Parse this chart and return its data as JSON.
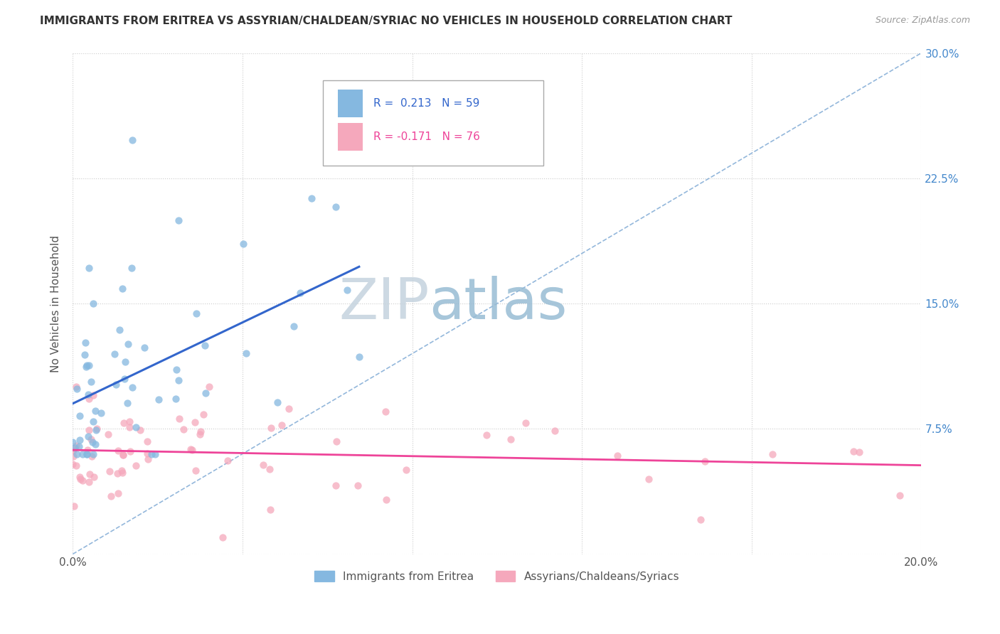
{
  "title": "IMMIGRANTS FROM ERITREA VS ASSYRIAN/CHALDEAN/SYRIAC NO VEHICLES IN HOUSEHOLD CORRELATION CHART",
  "source": "Source: ZipAtlas.com",
  "ylabel": "No Vehicles in Household",
  "y_tick_labels": [
    "",
    "7.5%",
    "15.0%",
    "22.5%",
    "30.0%"
  ],
  "y_tick_values": [
    0.0,
    0.075,
    0.15,
    0.225,
    0.3
  ],
  "x_min": 0.0,
  "x_max": 0.2,
  "y_min": 0.0,
  "y_max": 0.3,
  "legend_label1": "Immigrants from Eritrea",
  "legend_label2": "Assyrians/Chaldeans/Syriacs",
  "R1": 0.213,
  "N1": 59,
  "R2": -0.171,
  "N2": 76,
  "color1": "#85b8e0",
  "color2": "#f5a8bc",
  "trendline1_color": "#3366cc",
  "trendline2_color": "#ee4499",
  "diag_color": "#6699cc",
  "watermark_zip": "#c8d4e0",
  "watermark_atlas": "#a0bcd0",
  "title_fontsize": 11,
  "source_fontsize": 9,
  "scatter_size": 55,
  "scatter_alpha": 0.75
}
